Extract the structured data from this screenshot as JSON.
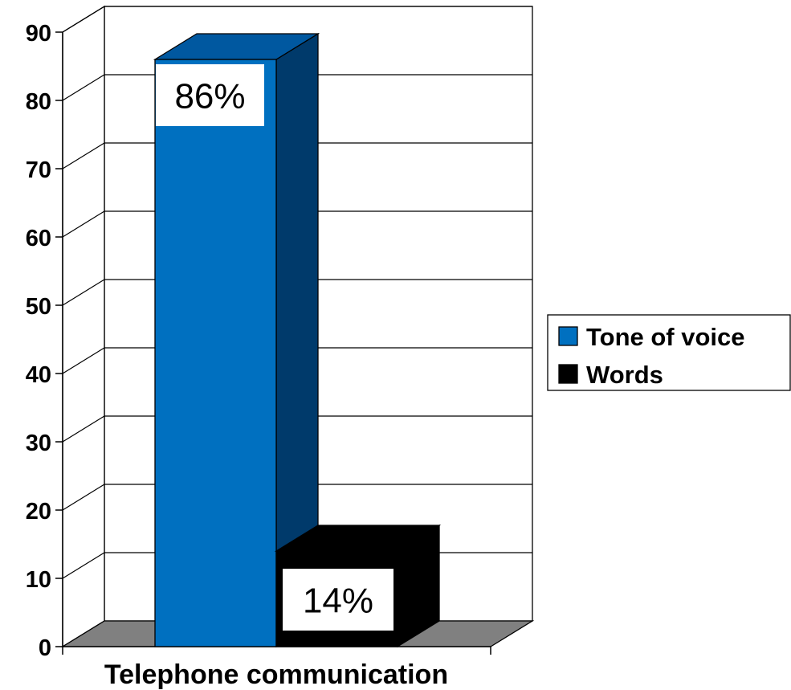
{
  "chart_data": {
    "type": "bar",
    "categories": [
      "Telephone communication"
    ],
    "series": [
      {
        "name": "Tone of voice",
        "values": [
          86
        ],
        "data_label": "86%",
        "color": "#0070C0",
        "side_color": "#003A6B",
        "top_color": "#0058A0"
      },
      {
        "name": "Words",
        "values": [
          14
        ],
        "data_label": "14%",
        "color": "#000000",
        "side_color": "#000000",
        "top_color": "#000000"
      }
    ],
    "y_ticks": [
      "0",
      "10",
      "20",
      "30",
      "40",
      "50",
      "60",
      "70",
      "80",
      "90"
    ],
    "ylim": [
      0,
      90
    ],
    "grid": true,
    "floor_color": "#808080",
    "legend_position": "right"
  }
}
